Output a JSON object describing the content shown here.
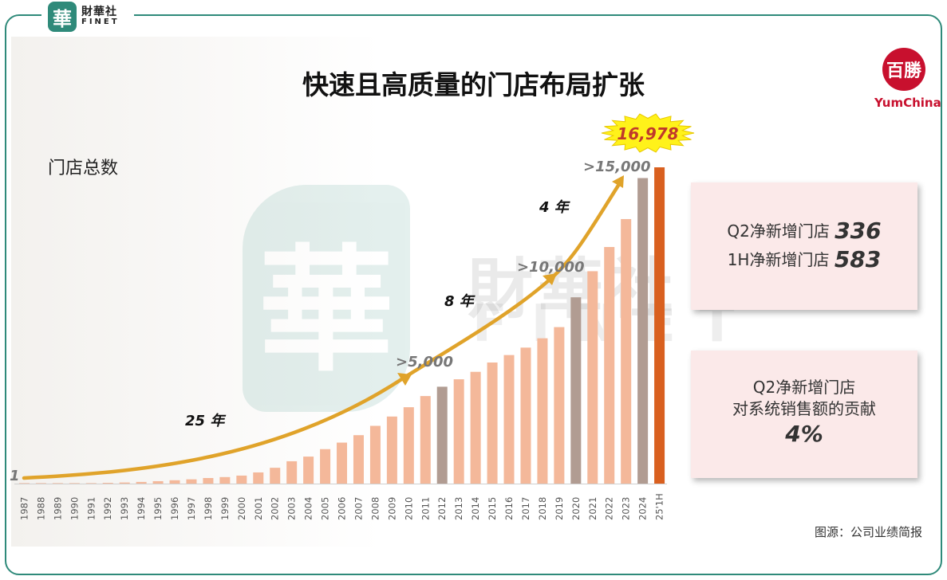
{
  "brand": {
    "seal_char": "華",
    "name_cn": "財華社",
    "name_en": "FINET"
  },
  "watermark": {
    "seal_char": "華",
    "text_cn": "財華社",
    "text_en": "FINET"
  },
  "logo": {
    "badge_text": "百勝",
    "name": "YumChina"
  },
  "title": "快速且高质量的门店布局扩张",
  "y_label": "门店总数",
  "latest_total_label": "16,978",
  "milestones": [
    {
      "label": "1"
    },
    {
      "label": ">5,000"
    },
    {
      "label": ">10,000"
    },
    {
      "label": ">15,000"
    }
  ],
  "segments": [
    {
      "label": "25 年"
    },
    {
      "label": "8 年"
    },
    {
      "label": "4 年"
    }
  ],
  "cards": {
    "net_new": {
      "q2_label": "Q2净新增门店",
      "q2_value": "336",
      "h1_label": "1H净新增门店",
      "h1_value": "583"
    },
    "contribution": {
      "line1": "Q2净新增门店",
      "line2": "对系统销售额的贡献",
      "value": "4%"
    }
  },
  "source": "图源：公司业绩简报",
  "colors": {
    "bar_normal": "#f4b89a",
    "bar_milestone": "#b19c92",
    "bar_latest": "#d9601f",
    "arrow": "#e0a32a",
    "burst": "#fff21a",
    "card_bg": "#fbe9e9",
    "frame": "#2f8a7a"
  },
  "chart_data": {
    "type": "bar",
    "title": "快速且高质量的门店布局扩张",
    "ylabel": "门店总数",
    "xlabel": "",
    "ylim": [
      0,
      17500
    ],
    "categories": [
      "1987",
      "1988",
      "1989",
      "1990",
      "1991",
      "1992",
      "1993",
      "1994",
      "1995",
      "1996",
      "1997",
      "1998",
      "1999",
      "2000",
      "2001",
      "2002",
      "2003",
      "2004",
      "2005",
      "2006",
      "2007",
      "2008",
      "2009",
      "2010",
      "2011",
      "2012",
      "2013",
      "2014",
      "2015",
      "2016",
      "2017",
      "2018",
      "2019",
      "2020",
      "2021",
      "2022",
      "2023",
      "2024",
      "25'1H"
    ],
    "values": [
      1,
      5,
      10,
      15,
      25,
      40,
      60,
      90,
      130,
      180,
      230,
      300,
      350,
      430,
      600,
      850,
      1200,
      1450,
      1850,
      2200,
      2600,
      3100,
      3600,
      4100,
      4700,
      5200,
      5600,
      6000,
      6500,
      6900,
      7300,
      7800,
      8400,
      10000,
      11400,
      12700,
      14200,
      16400,
      16978
    ],
    "highlight": {
      "milestone_years": [
        "2012",
        "2020",
        "2024"
      ],
      "latest": "25'1H"
    },
    "annotations": [
      ">5,000",
      ">10,000",
      ">15,000",
      "16,978"
    ]
  }
}
